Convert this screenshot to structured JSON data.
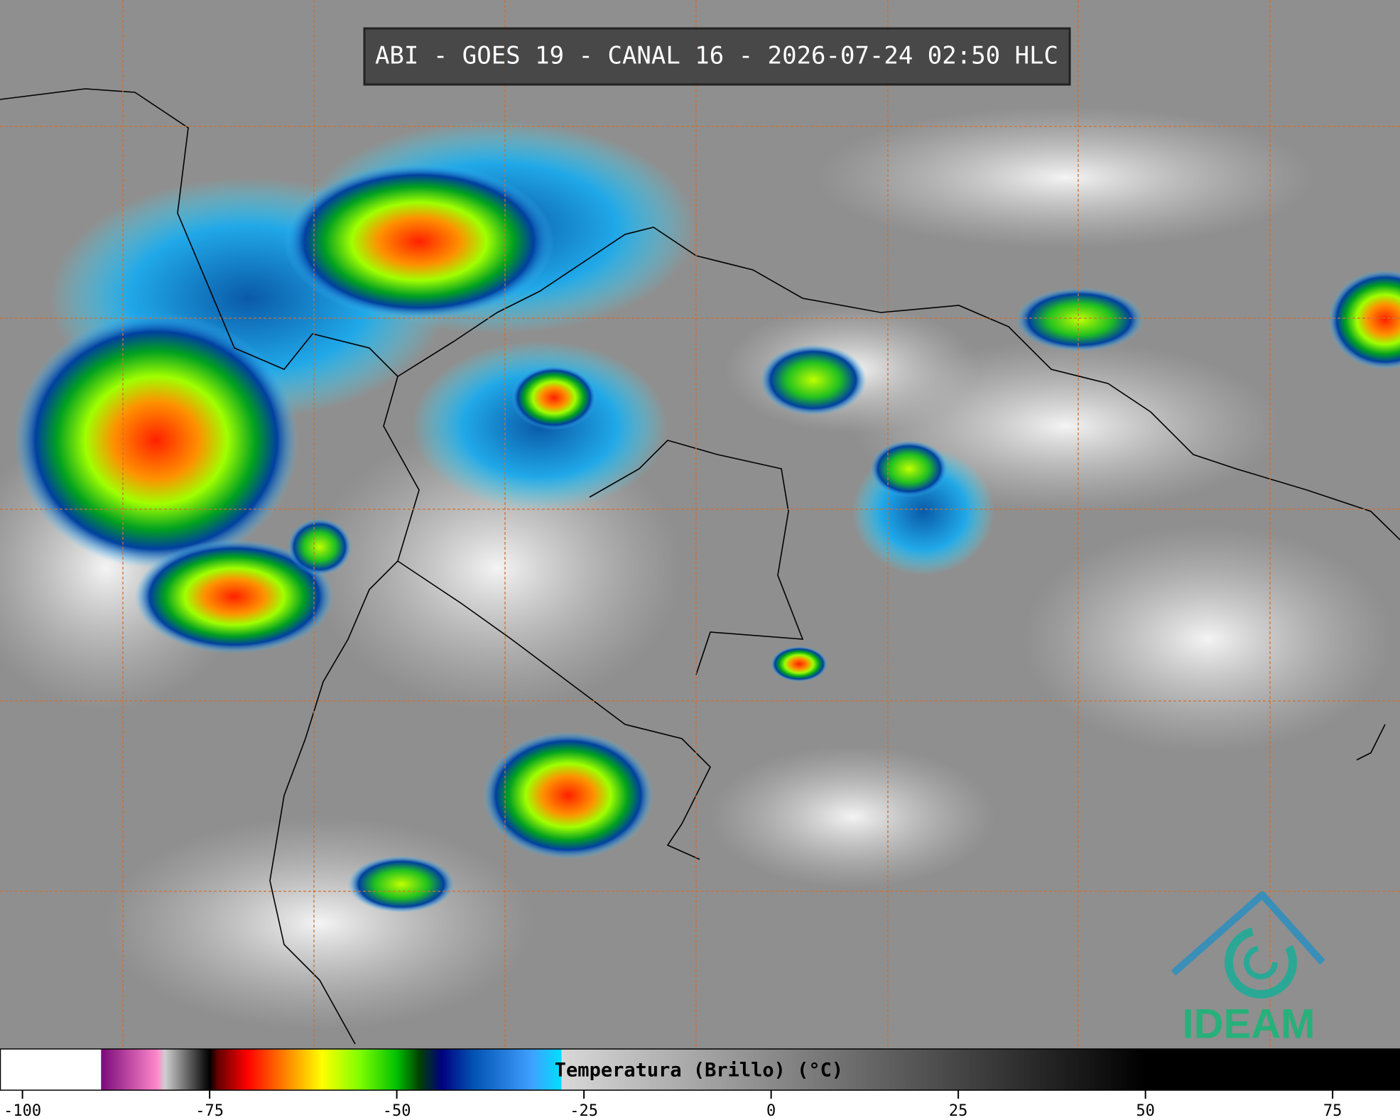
{
  "header": {
    "title": "ABI - GOES 19 - CANAL 16 - 2026-07-24 02:50 HLC"
  },
  "logo": {
    "text": "IDEAM"
  },
  "colorbar": {
    "label": "Temperatura (Brillo) (°C)",
    "xlim": [
      -103,
      84
    ],
    "xticks": [
      -100,
      -75,
      -50,
      -25,
      0,
      25,
      50,
      75
    ],
    "colormap": [
      {
        "value": -103,
        "color": "#ffffff"
      },
      {
        "value": -89.5,
        "color": "#ffffff"
      },
      {
        "value": -89.5,
        "color": "#7a0a7a"
      },
      {
        "value": -82,
        "color": "#ff88cc"
      },
      {
        "value": -81,
        "color": "#d0d0d0"
      },
      {
        "value": -76,
        "color": "#202020"
      },
      {
        "value": -75,
        "color": "#000000"
      },
      {
        "value": -74,
        "color": "#600000"
      },
      {
        "value": -70,
        "color": "#ff0000"
      },
      {
        "value": -65,
        "color": "#ff8000"
      },
      {
        "value": -60,
        "color": "#ffff00"
      },
      {
        "value": -55,
        "color": "#80ff00"
      },
      {
        "value": -50,
        "color": "#00c000"
      },
      {
        "value": -47,
        "color": "#004000"
      },
      {
        "value": -44,
        "color": "#000080"
      },
      {
        "value": -40,
        "color": "#0050b0"
      },
      {
        "value": -32,
        "color": "#40a0ff"
      },
      {
        "value": -28,
        "color": "#00e0ff"
      },
      {
        "value": -28,
        "color": "#d8d8d8"
      },
      {
        "value": 50,
        "color": "#000000"
      },
      {
        "value": 84,
        "color": "#000000"
      }
    ]
  }
}
